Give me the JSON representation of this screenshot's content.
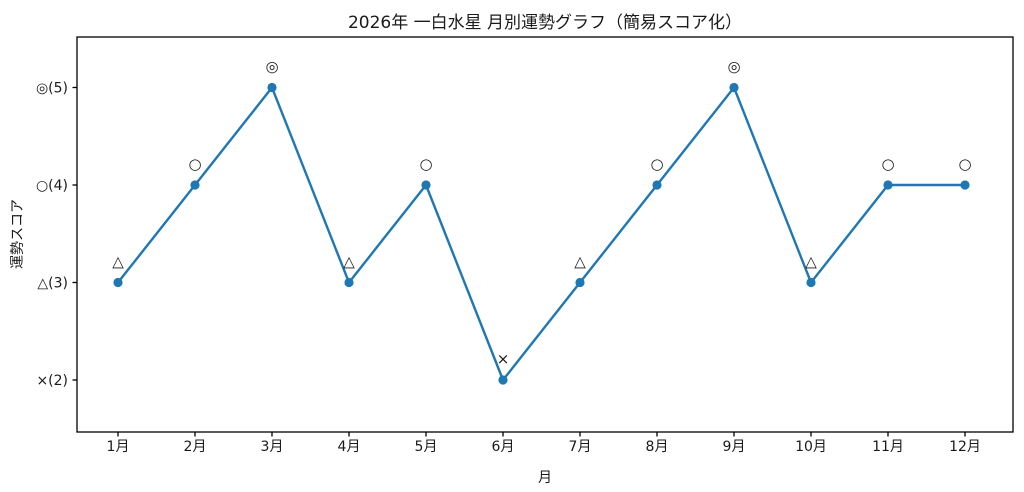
{
  "chart_data": {
    "type": "line",
    "title": "2026年 一白水星 月別運勢グラフ（簡易スコア化）",
    "xlabel": "月",
    "ylabel": "運勢スコア",
    "categories": [
      "1月",
      "2月",
      "3月",
      "4月",
      "5月",
      "6月",
      "7月",
      "8月",
      "9月",
      "10月",
      "11月",
      "12月"
    ],
    "series": [
      {
        "name": "運勢スコア",
        "values": [
          3,
          4,
          5,
          3,
          4,
          2,
          3,
          4,
          5,
          3,
          4,
          4
        ]
      }
    ],
    "point_annotations": [
      "△",
      "○",
      "◎",
      "△",
      "○",
      "×",
      "△",
      "○",
      "◎",
      "△",
      "○",
      "○"
    ],
    "y_ticks": [
      {
        "value": 2,
        "label": "×(2)"
      },
      {
        "value": 3,
        "label": "△(3)"
      },
      {
        "value": 4,
        "label": "○(4)"
      },
      {
        "value": 5,
        "label": "◎(5)"
      }
    ],
    "ylim": [
      1.5,
      5.5
    ],
    "grid": false,
    "legend_position": "none",
    "colors": {
      "line": "#1f77b4",
      "marker": "#1f77b4",
      "annotation": "#1a1a1a",
      "axis": "#000000",
      "background": "#ffffff"
    }
  }
}
